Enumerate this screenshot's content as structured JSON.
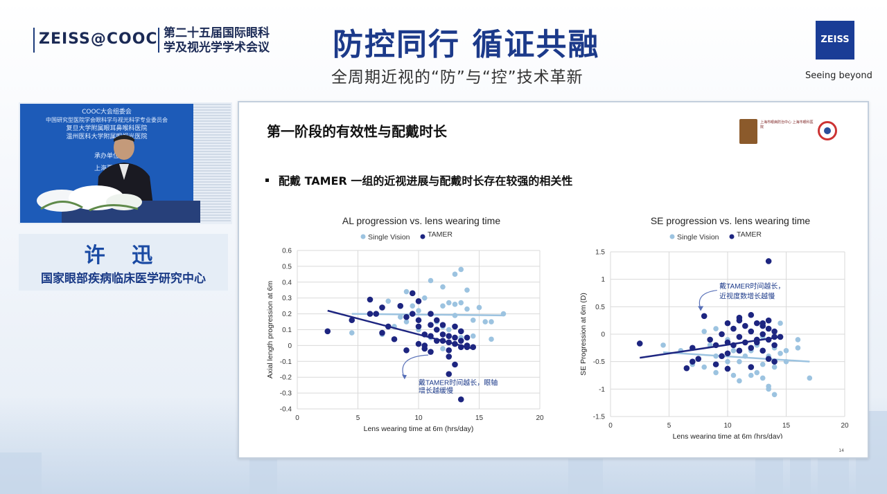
{
  "header": {
    "cooc_logo": "ZEISS@COOC",
    "conference_line1": "第二十五届国际眼科",
    "conference_line2": "学及视光学学术会议",
    "main_title": "防控同行  循证共融",
    "sub_title": "全周期近视的“防”与“控”技术革新",
    "zeiss_logo": "ZEISS",
    "zeiss_tagline": "Seeing beyond"
  },
  "video": {
    "lines": [
      "COOC大会组委会",
      "中国研究型医院学会眼科学与视光科学专业委员会",
      "复旦大学附属眼耳鼻喉科医院",
      "温州医科大学附属眼视光医院",
      "承办单位",
      "上海夏诺"
    ]
  },
  "speaker": {
    "name": "许 迅",
    "affiliation": "国家眼部疾病临床医学研究中心"
  },
  "slide": {
    "title": "第一阶段的有效性与配戴时长",
    "bullet": "配戴 TAMER 一组的近视进展与配戴时长存在较强的相关性",
    "page_number": "14",
    "partner_logo_text": "上海市眼病防治中心 上海市眼科医院"
  },
  "colors": {
    "single_vision": "#9cc3e0",
    "tamer": "#1d2580",
    "arrow": "#5870b8",
    "title_blue": "#1c3a8a"
  },
  "chart_data": [
    {
      "type": "scatter",
      "title": "AL progression vs. lens wearing time",
      "xlabel": "Lens wearing time at 6m (hrs/day)",
      "ylabel": "Axial length progression at 6m",
      "xlim": [
        0,
        20
      ],
      "ylim": [
        -0.4,
        0.6
      ],
      "xticks": [
        "0",
        "5",
        "10",
        "15",
        "20"
      ],
      "yticks": [
        "0.6",
        "0.5",
        "0.4",
        "0.3",
        "0.2",
        "0.1",
        "0",
        "-0.1",
        "-0.2",
        "-0.3",
        "-0.4"
      ],
      "grid": true,
      "legend": "top-center",
      "annotation": [
        "戴TAMER时间越长，眼轴",
        "增长越缓慢"
      ],
      "series": [
        {
          "name": "Single Vision",
          "points": [
            [
              4.5,
              0.08
            ],
            [
              7,
              0.07
            ],
            [
              7.5,
              0.28
            ],
            [
              8,
              0.12
            ],
            [
              8.5,
              0.18
            ],
            [
              9,
              0.34
            ],
            [
              9,
              0.15
            ],
            [
              9.5,
              0.25
            ],
            [
              10,
              0.1
            ],
            [
              10,
              0.22
            ],
            [
              10.5,
              0.3
            ],
            [
              11,
              0.41
            ],
            [
              11,
              0.2
            ],
            [
              11.5,
              0.15
            ],
            [
              12,
              0.37
            ],
            [
              12,
              0.25
            ],
            [
              12,
              0.12
            ],
            [
              12.5,
              0.27
            ],
            [
              12.5,
              0.1
            ],
            [
              13,
              0.45
            ],
            [
              13,
              0.26
            ],
            [
              13,
              0.19
            ],
            [
              13.5,
              0.48
            ],
            [
              13.5,
              0.27
            ],
            [
              13.5,
              0.05
            ],
            [
              14,
              0.35
            ],
            [
              14,
              0.23
            ],
            [
              14.5,
              0.16
            ],
            [
              14.5,
              0.06
            ],
            [
              15,
              0.24
            ],
            [
              15.5,
              0.15
            ],
            [
              16,
              0.04
            ],
            [
              16,
              0.15
            ],
            [
              17,
              0.2
            ],
            [
              12,
              -0.02
            ],
            [
              11,
              0.05
            ]
          ],
          "trend": [
            [
              4.5,
              0.2
            ],
            [
              17,
              0.19
            ]
          ]
        },
        {
          "name": "TAMER",
          "points": [
            [
              2.5,
              0.09
            ],
            [
              4.5,
              0.16
            ],
            [
              6,
              0.29
            ],
            [
              6.5,
              0.2
            ],
            [
              7,
              0.24
            ],
            [
              7,
              0.08
            ],
            [
              7.5,
              0.12
            ],
            [
              8,
              0.04
            ],
            [
              8.5,
              0.25
            ],
            [
              9,
              0.18
            ],
            [
              9,
              -0.03
            ],
            [
              9.5,
              0.2
            ],
            [
              10,
              0.16
            ],
            [
              10,
              0.12
            ],
            [
              10,
              0.28
            ],
            [
              10,
              0.01
            ],
            [
              10.5,
              0.07
            ],
            [
              10.5,
              0.0
            ],
            [
              10.5,
              -0.02
            ],
            [
              11,
              0.2
            ],
            [
              11,
              0.13
            ],
            [
              11,
              0.06
            ],
            [
              11,
              -0.04
            ],
            [
              11.5,
              0.16
            ],
            [
              11.5,
              0.1
            ],
            [
              11.5,
              0.03
            ],
            [
              12,
              0.13
            ],
            [
              12,
              0.07
            ],
            [
              12,
              0.03
            ],
            [
              12.5,
              0.06
            ],
            [
              12.5,
              0.02
            ],
            [
              12.5,
              -0.03
            ],
            [
              12.5,
              -0.07
            ],
            [
              12.5,
              -0.18
            ],
            [
              13,
              0.12
            ],
            [
              13,
              0.05
            ],
            [
              13,
              0.01
            ],
            [
              13,
              -0.12
            ],
            [
              13.5,
              0.09
            ],
            [
              13.5,
              0.03
            ],
            [
              13.5,
              -0.01
            ],
            [
              14,
              0.05
            ],
            [
              14,
              0.0
            ],
            [
              14,
              -0.01
            ],
            [
              14.5,
              -0.01
            ],
            [
              13.5,
              -0.34
            ],
            [
              6,
              0.2
            ],
            [
              9.5,
              0.33
            ]
          ],
          "trend": [
            [
              2.5,
              0.22
            ],
            [
              14.5,
              -0.02
            ]
          ]
        }
      ]
    },
    {
      "type": "scatter",
      "title": "SE progression vs. lens wearing time",
      "xlabel": "Lens wearing time at 6m (hrs/day)",
      "ylabel": "SE  Progression at 6m (D)",
      "xlim": [
        0,
        20
      ],
      "ylim": [
        -1.5,
        1.5
      ],
      "xticks": [
        "0",
        "5",
        "10",
        "15",
        "20"
      ],
      "yticks": [
        "1.5",
        "1",
        "0.5",
        "0",
        "-0.5",
        "-1",
        "-1.5"
      ],
      "grid": true,
      "legend": "top-center",
      "annotation": [
        "戴TAMER时间越长，",
        "近视度数增长越慢"
      ],
      "series": [
        {
          "name": "Single Vision",
          "points": [
            [
              4.5,
              -0.2
            ],
            [
              6,
              -0.3
            ],
            [
              7,
              -0.55
            ],
            [
              7.5,
              -0.45
            ],
            [
              8,
              0.05
            ],
            [
              8,
              -0.6
            ],
            [
              8.5,
              -0.2
            ],
            [
              9,
              -0.7
            ],
            [
              9,
              -0.4
            ],
            [
              10,
              -0.5
            ],
            [
              10,
              -0.1
            ],
            [
              10.5,
              -0.75
            ],
            [
              10.5,
              -0.3
            ],
            [
              11,
              -0.85
            ],
            [
              11,
              -0.5
            ],
            [
              11,
              0.3
            ],
            [
              11.5,
              -0.4
            ],
            [
              12,
              -0.6
            ],
            [
              12,
              -0.3
            ],
            [
              12,
              0.05
            ],
            [
              12.5,
              -0.7
            ],
            [
              12.5,
              -0.2
            ],
            [
              13,
              -0.8
            ],
            [
              13,
              -0.55
            ],
            [
              13,
              -0.05
            ],
            [
              13.5,
              -0.95
            ],
            [
              13.5,
              -0.4
            ],
            [
              13.5,
              -1.0
            ],
            [
              14,
              -0.6
            ],
            [
              14,
              -0.25
            ],
            [
              14,
              -1.1
            ],
            [
              14.5,
              -0.35
            ],
            [
              14.5,
              0.2
            ],
            [
              15,
              -0.3
            ],
            [
              15,
              -0.5
            ],
            [
              16,
              -0.1
            ],
            [
              16,
              -0.25
            ],
            [
              17,
              -0.8
            ],
            [
              9,
              0.1
            ],
            [
              12,
              -0.75
            ]
          ],
          "trend": [
            [
              4.5,
              -0.33
            ],
            [
              17,
              -0.5
            ]
          ]
        },
        {
          "name": "TAMER",
          "points": [
            [
              2.5,
              -0.17
            ],
            [
              6.5,
              -0.62
            ],
            [
              7,
              -0.25
            ],
            [
              7,
              -0.5
            ],
            [
              7.5,
              -0.45
            ],
            [
              8,
              0.33
            ],
            [
              8.5,
              -0.1
            ],
            [
              9,
              -0.55
            ],
            [
              9,
              -0.2
            ],
            [
              9.5,
              -0.4
            ],
            [
              9.5,
              0.0
            ],
            [
              10,
              0.2
            ],
            [
              10,
              -0.15
            ],
            [
              10,
              -0.35
            ],
            [
              10,
              -0.63
            ],
            [
              10.5,
              0.1
            ],
            [
              10.5,
              -0.2
            ],
            [
              11,
              0.25
            ],
            [
              11,
              -0.05
            ],
            [
              11,
              -0.3
            ],
            [
              11.5,
              0.15
            ],
            [
              11.5,
              -0.15
            ],
            [
              12,
              0.35
            ],
            [
              12,
              0.05
            ],
            [
              12,
              -0.25
            ],
            [
              12,
              -0.6
            ],
            [
              12.5,
              0.2
            ],
            [
              12.5,
              -0.1
            ],
            [
              13,
              0.15
            ],
            [
              13,
              0.0
            ],
            [
              13,
              -0.3
            ],
            [
              13.5,
              0.1
            ],
            [
              13.5,
              -0.1
            ],
            [
              13.5,
              -0.45
            ],
            [
              13.5,
              0.25
            ],
            [
              14,
              0.05
            ],
            [
              14,
              -0.2
            ],
            [
              14,
              -0.5
            ],
            [
              14,
              -0.05
            ],
            [
              14.5,
              -0.05
            ],
            [
              13.5,
              1.33
            ],
            [
              11,
              0.3
            ],
            [
              12.5,
              -0.15
            ],
            [
              13,
              0.2
            ]
          ],
          "trend": [
            [
              2.5,
              -0.43
            ],
            [
              14.5,
              -0.05
            ]
          ]
        }
      ]
    }
  ]
}
